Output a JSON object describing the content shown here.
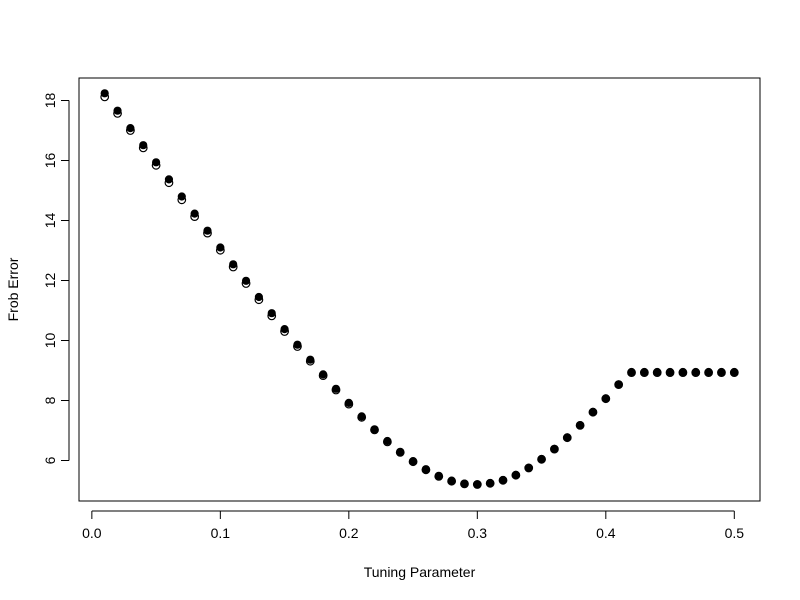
{
  "chart_data": {
    "type": "scatter",
    "xlabel": "Tuning Parameter",
    "ylabel": "Frob Error",
    "xlim": [
      -0.01,
      0.52
    ],
    "ylim": [
      4.65,
      18.75
    ],
    "x_ticks": [
      0.0,
      0.1,
      0.2,
      0.3,
      0.4,
      0.5
    ],
    "x_tick_labels": [
      "0.0",
      "0.1",
      "0.2",
      "0.3",
      "0.4",
      "0.5"
    ],
    "y_ticks": [
      6,
      8,
      10,
      12,
      14,
      16,
      18
    ],
    "y_tick_labels": [
      "6",
      "8",
      "10",
      "12",
      "14",
      "16",
      "18"
    ],
    "grid": false,
    "legend": "none",
    "series": [
      {
        "marker": "open-circle",
        "color": "#000000",
        "x": [
          0.01,
          0.02,
          0.03,
          0.04,
          0.05,
          0.06,
          0.07,
          0.08,
          0.09,
          0.1,
          0.11,
          0.12,
          0.13,
          0.14,
          0.15,
          0.16,
          0.17,
          0.18,
          0.19,
          0.2,
          0.21,
          0.22,
          0.23,
          0.24,
          0.25,
          0.26,
          0.27,
          0.28,
          0.29,
          0.3,
          0.31,
          0.32,
          0.33,
          0.34,
          0.35,
          0.36,
          0.37,
          0.38,
          0.39,
          0.4,
          0.41,
          0.42,
          0.43,
          0.44,
          0.45,
          0.46,
          0.47,
          0.48,
          0.49,
          0.5
        ],
        "y": [
          18.12,
          17.57,
          17.0,
          16.42,
          15.84,
          15.26,
          14.69,
          14.13,
          13.58,
          13.01,
          12.45,
          11.9,
          11.36,
          10.82,
          10.3,
          9.8,
          9.31,
          8.83,
          8.35,
          7.88,
          7.44,
          7.02,
          6.62,
          6.27,
          5.96,
          5.69,
          5.47,
          5.31,
          5.22,
          5.2,
          5.24,
          5.34,
          5.51,
          5.75,
          6.04,
          6.38,
          6.76,
          7.17,
          7.61,
          8.06,
          8.53,
          8.93,
          8.93,
          8.93,
          8.93,
          8.93,
          8.93,
          8.93,
          8.93,
          8.93
        ]
      },
      {
        "marker": "filled-circle",
        "color": "#000000",
        "x": [
          0.01,
          0.02,
          0.03,
          0.04,
          0.05,
          0.06,
          0.07,
          0.08,
          0.09,
          0.1,
          0.11,
          0.12,
          0.13,
          0.14,
          0.15,
          0.16,
          0.17,
          0.18,
          0.19,
          0.2,
          0.21,
          0.22,
          0.23,
          0.24,
          0.25,
          0.26,
          0.27,
          0.28,
          0.29,
          0.3,
          0.31,
          0.32,
          0.33,
          0.34,
          0.35,
          0.36,
          0.37,
          0.38,
          0.39,
          0.4,
          0.41,
          0.42,
          0.43,
          0.44,
          0.45,
          0.46,
          0.47,
          0.48,
          0.49,
          0.5
        ],
        "y": [
          18.24,
          17.66,
          17.08,
          16.51,
          15.94,
          15.37,
          14.8,
          14.23,
          13.66,
          13.1,
          12.54,
          11.99,
          11.45,
          10.91,
          10.38,
          9.86,
          9.36,
          8.87,
          8.39,
          7.92,
          7.47,
          7.04,
          6.65,
          6.29,
          5.98,
          5.71,
          5.49,
          5.33,
          5.23,
          5.21,
          5.25,
          5.35,
          5.52,
          5.76,
          6.05,
          6.39,
          6.77,
          7.18,
          7.62,
          8.07,
          8.54,
          8.95,
          8.95,
          8.95,
          8.95,
          8.95,
          8.95,
          8.95,
          8.95,
          8.95
        ]
      }
    ]
  }
}
